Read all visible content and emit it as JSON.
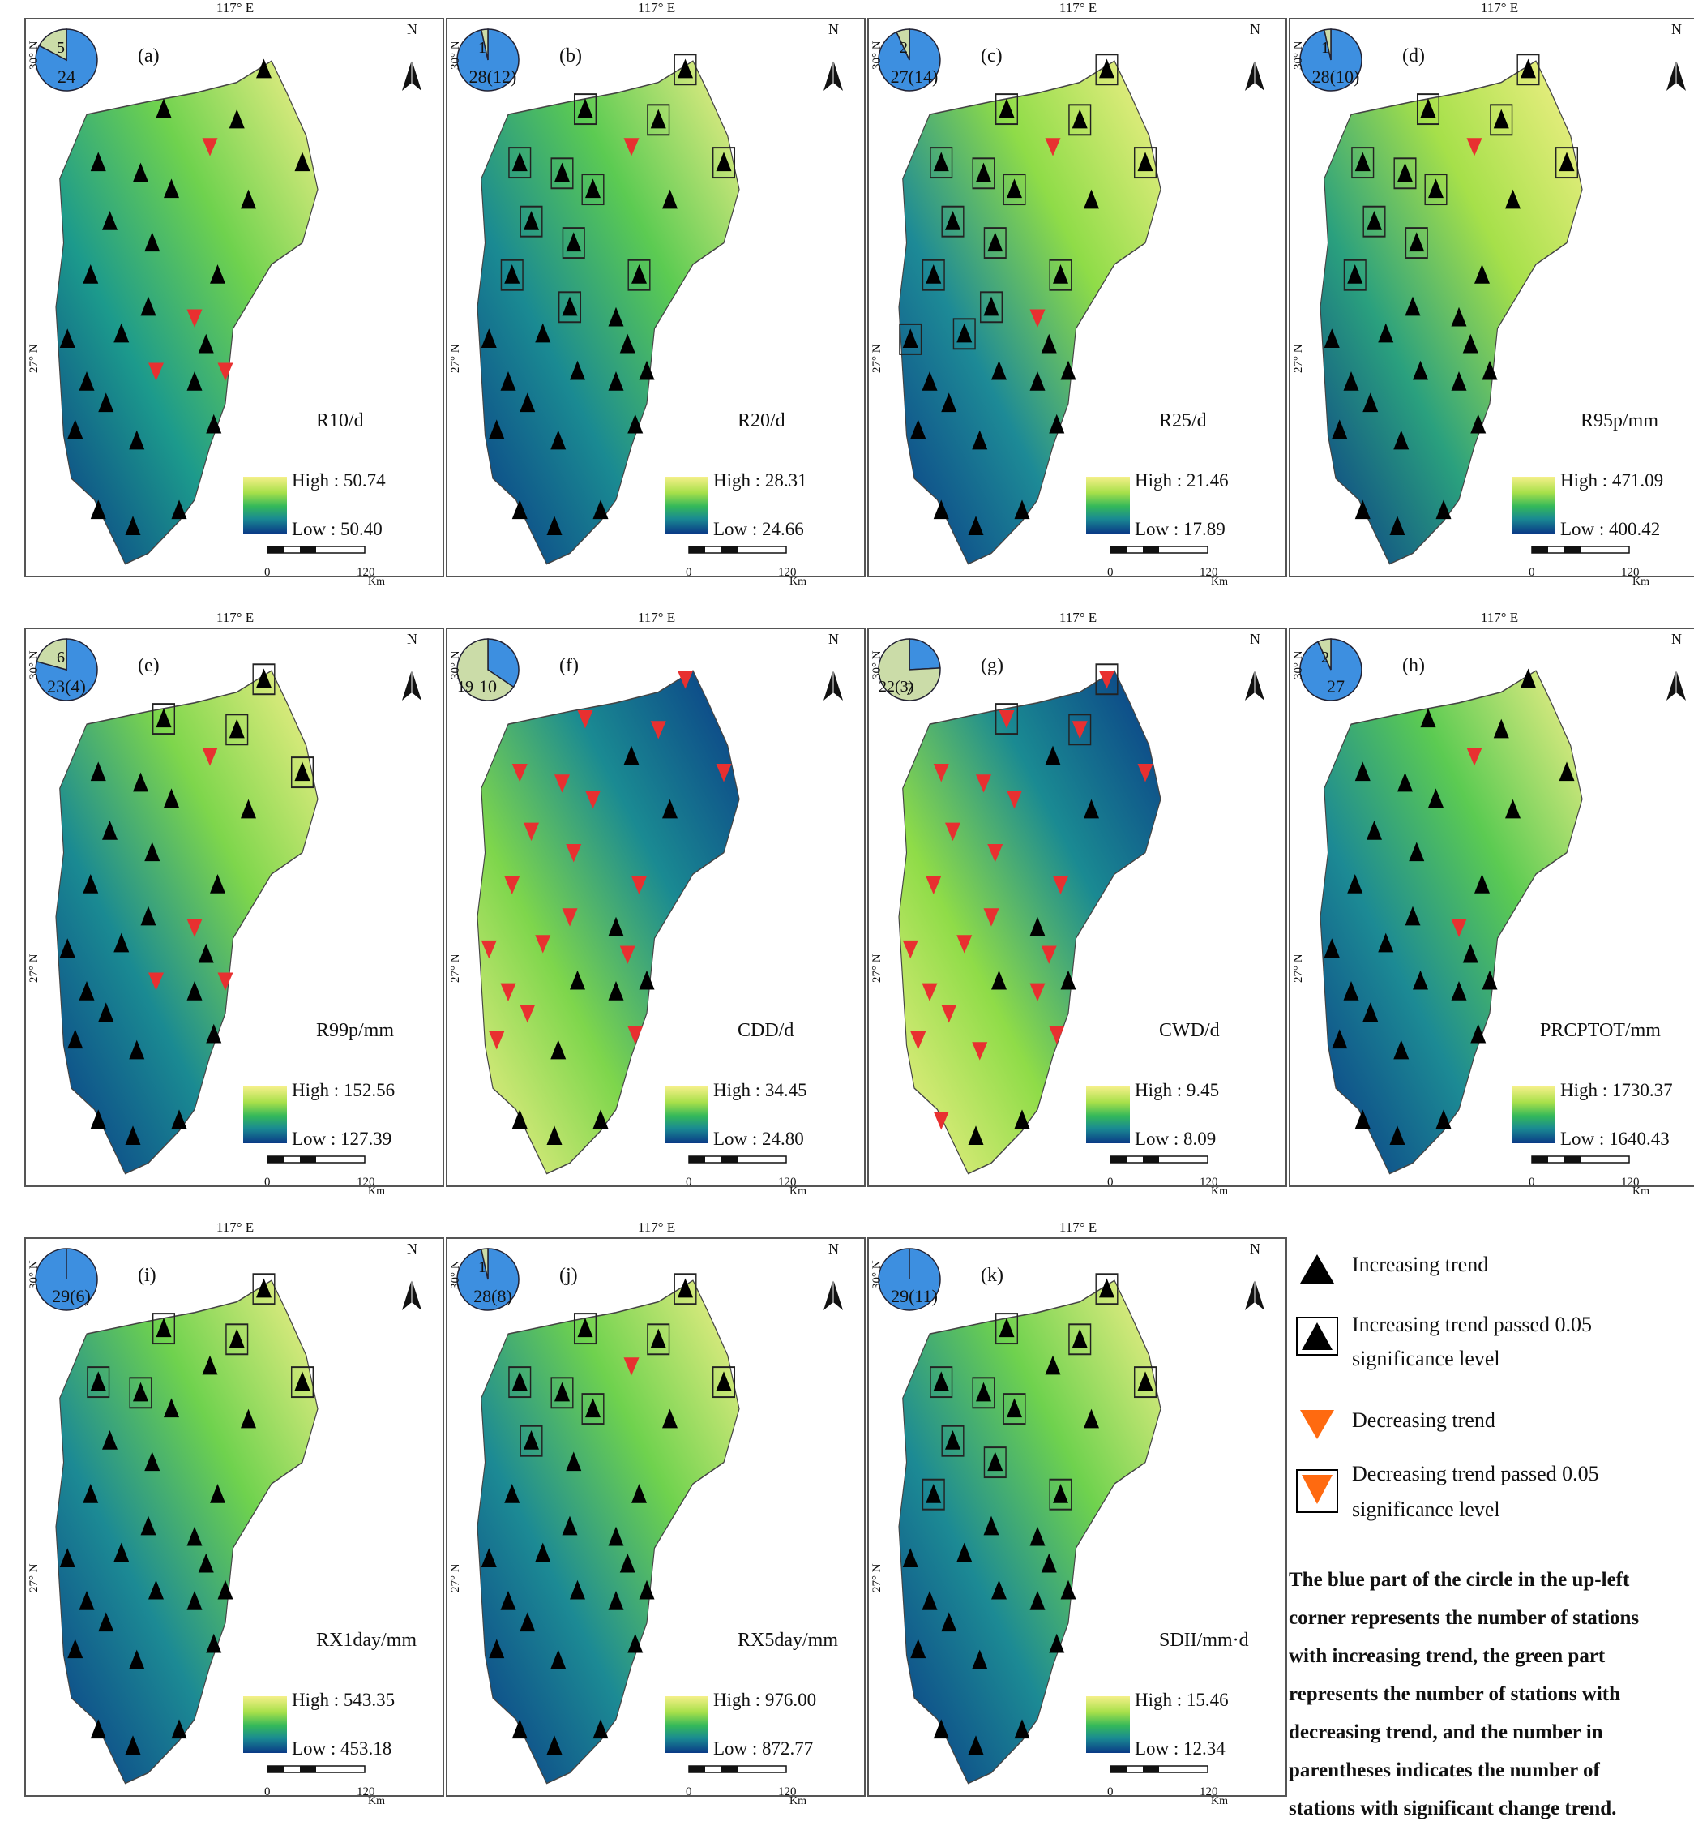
{
  "lon_label": "117° E",
  "lat_top": "30° N",
  "lat_bottom": "27° N",
  "north": "N",
  "scale": {
    "zero": "0",
    "dist": "120",
    "unit": "Km"
  },
  "colors": {
    "high": "#f5f08a",
    "mid": "#34b85a",
    "low": "#0a3a86",
    "increase": "#000000",
    "decrease": "#e83030",
    "pie_blue": "#3d8fe0",
    "pie_green": "#cbdca8"
  },
  "panels": [
    {
      "label": "(a)",
      "index": "R10/d",
      "high": "High : 50.74",
      "low": "Low : 50.40",
      "pie_blue": "24",
      "pie_green": "5",
      "blue_n": 24,
      "green_n": 5
    },
    {
      "label": "(b)",
      "index": "R20/d",
      "high": "High : 28.31",
      "low": "Low : 24.66",
      "pie_blue": "28(12)",
      "pie_green": "1",
      "blue_n": 28,
      "green_n": 1
    },
    {
      "label": "(c)",
      "index": "R25/d",
      "high": "High : 21.46",
      "low": "Low : 17.89",
      "pie_blue": "27(14)",
      "pie_green": "2",
      "blue_n": 27,
      "green_n": 2
    },
    {
      "label": "(d)",
      "index": "R95p/mm",
      "high": "High : 471.09",
      "low": "Low : 400.42",
      "pie_blue": "28(10)",
      "pie_green": "1",
      "blue_n": 28,
      "green_n": 1
    },
    {
      "label": "(e)",
      "index": "R99p/mm",
      "high": "High : 152.56",
      "low": "Low : 127.39",
      "pie_blue": "23(4)",
      "pie_green": "6",
      "blue_n": 23,
      "green_n": 6
    },
    {
      "label": "(f)",
      "index": "CDD/d",
      "high": "High : 34.45",
      "low": "Low : 24.80",
      "pie_blue": "10",
      "pie_green": "19",
      "blue_n": 10,
      "green_n": 19
    },
    {
      "label": "(g)",
      "index": "CWD/d",
      "high": "High : 9.45",
      "low": "Low : 8.09",
      "pie_blue": "7",
      "pie_green": "22(3)",
      "blue_n": 7,
      "green_n": 22
    },
    {
      "label": "(h)",
      "index": "PRCPTOT/mm",
      "high": "High : 1730.37",
      "low": "Low : 1640.43",
      "pie_blue": "27",
      "pie_green": "2",
      "blue_n": 27,
      "green_n": 2
    },
    {
      "label": "(i)",
      "index": "RX1day/mm",
      "high": "High : 543.35",
      "low": "Low : 453.18",
      "pie_blue": "29(6)",
      "pie_green": "",
      "blue_n": 29,
      "green_n": 0
    },
    {
      "label": "(j)",
      "index": "RX5day/mm",
      "high": "High : 976.00",
      "low": "Low : 872.77",
      "pie_blue": "28(8)",
      "pie_green": "1",
      "blue_n": 28,
      "green_n": 1
    },
    {
      "label": "(k)",
      "index": "SDII/mm·d",
      "high": "High : 15.46",
      "low": "Low : 12.34",
      "pie_blue": "29(11)",
      "pie_green": "",
      "blue_n": 29,
      "green_n": 0
    }
  ],
  "legend": {
    "increasing": "Increasing trend",
    "increasing_sig_1": "Increasing trend passed 0.05",
    "increasing_sig_2": "significance level",
    "decreasing": "Decreasing trend",
    "decreasing_sig_1": "Decreasing trend passed 0.05",
    "decreasing_sig_2": "significance level"
  },
  "note": [
    "The blue part of the circle in the up-left",
    "corner represents the number of stations",
    "with increasing trend, the green part",
    "represents the number of stations with",
    "decreasing trend, and the number in",
    "parentheses indicates the number of",
    "stations with significant change trend."
  ]
}
